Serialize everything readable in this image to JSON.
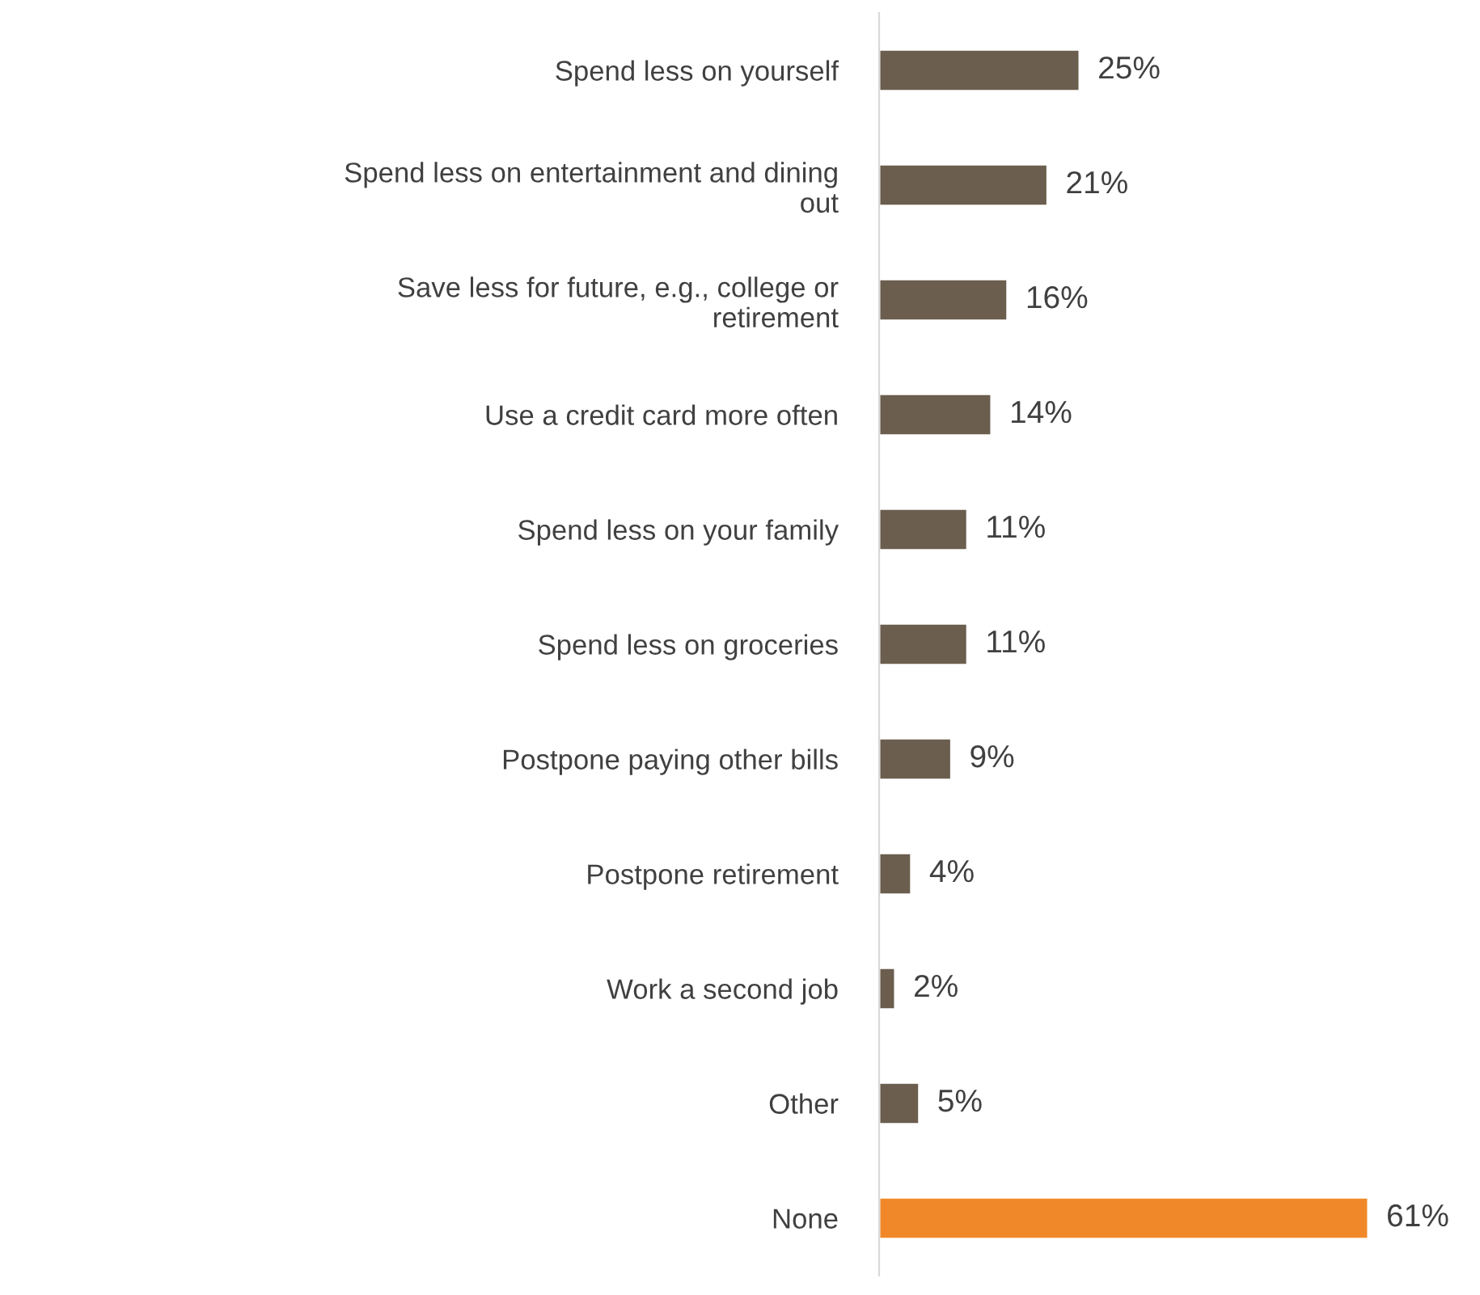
{
  "chart_data": {
    "type": "bar",
    "orientation": "horizontal",
    "categories": [
      "Spend less on yourself",
      "Spend less on entertainment and dining out",
      "Save less for future, e.g., college or retirement",
      "Use a credit card more often",
      "Spend less on your family",
      "Spend less on groceries",
      "Postpone paying other bills",
      "Postpone retirement",
      "Work a second job",
      "Other",
      "None"
    ],
    "values": [
      25,
      21,
      16,
      14,
      11,
      11,
      9,
      4,
      2,
      5,
      61
    ],
    "colors": [
      "#6b5e4e",
      "#6b5e4e",
      "#6b5e4e",
      "#6b5e4e",
      "#6b5e4e",
      "#6b5e4e",
      "#6b5e4e",
      "#6b5e4e",
      "#6b5e4e",
      "#6b5e4e",
      "#f0882a"
    ],
    "value_labels": [
      "25%",
      "21%",
      "16%",
      "14%",
      "11%",
      "11%",
      "9%",
      "4%",
      "2%",
      "5%",
      "61%"
    ]
  }
}
